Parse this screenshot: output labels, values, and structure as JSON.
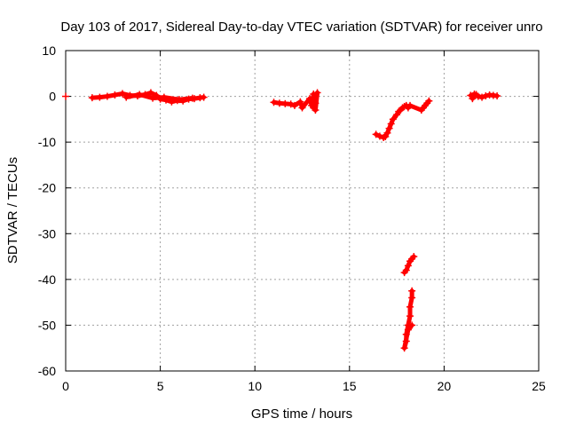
{
  "chart_data": {
    "type": "scatter",
    "title": "Day 103 of 2017, Sidereal Day-to-day VTEC variation (SDTVAR) for receiver unro",
    "xlabel": "GPS time / hours",
    "ylabel": "SDTVAR / TECUs",
    "xlim": [
      0,
      25
    ],
    "ylim": [
      -60,
      10
    ],
    "xticks": [
      0,
      5,
      10,
      15,
      20,
      25
    ],
    "yticks": [
      10,
      0,
      -10,
      -20,
      -30,
      -40,
      -50,
      -60
    ],
    "xtick_labels": [
      "0",
      "5",
      "10",
      "15",
      "20",
      "25"
    ],
    "ytick_labels": [
      "10",
      "0",
      "-10",
      "-20",
      "-30",
      "-40",
      "-50",
      "-60"
    ],
    "grid": true,
    "marker": "+",
    "series_color": "#ff0000",
    "series": [
      {
        "x": [
          0.0,
          1.4,
          1.8,
          2.2,
          2.6,
          3.0,
          3.4,
          3.8,
          4.2,
          4.5,
          4.8,
          5.0,
          5.3,
          5.6,
          5.9,
          6.2,
          6.5,
          6.8,
          7.1,
          7.3,
          3.2,
          3.9,
          4.6,
          5.2,
          6.0,
          6.7,
          11.0,
          11.3,
          11.6,
          11.9,
          12.1,
          12.4,
          12.5,
          12.9,
          13.0,
          13.1,
          13.2,
          13.3,
          13.2,
          13.1,
          16.4,
          16.6,
          16.8,
          16.9,
          17.0,
          17.1,
          17.2,
          17.3,
          17.5,
          17.6,
          17.7,
          17.8,
          17.9,
          18.0,
          18.1,
          18.2,
          18.8,
          18.9,
          19.0,
          19.1,
          19.2,
          17.9,
          18.0,
          18.1,
          18.2,
          18.3,
          18.4,
          18.3,
          18.3,
          18.2,
          18.2,
          18.1,
          18.0,
          18.0,
          17.9,
          18.1,
          18.3,
          21.4,
          21.6,
          21.8,
          22.0,
          22.2,
          22.4,
          22.6,
          22.8,
          21.5,
          21.7
        ],
        "y": [
          0.0,
          -0.3,
          -0.2,
          0.0,
          0.3,
          0.6,
          0.2,
          0.1,
          0.4,
          0.8,
          0.2,
          -0.6,
          -0.8,
          -1.2,
          -0.9,
          -1.0,
          -0.6,
          -0.5,
          -0.3,
          -0.2,
          -0.2,
          0.4,
          -0.4,
          -0.2,
          -0.7,
          -0.4,
          -1.3,
          -1.5,
          -1.6,
          -1.7,
          -2.0,
          -1.2,
          -2.5,
          -0.5,
          -2.0,
          0.5,
          -3.0,
          0.8,
          -1.5,
          -2.5,
          -8.3,
          -8.7,
          -9.0,
          -8.8,
          -8.0,
          -7.0,
          -6.0,
          -5.0,
          -4.0,
          -3.3,
          -3.0,
          -2.5,
          -2.2,
          -2.0,
          -2.5,
          -2.0,
          -3.0,
          -2.5,
          -2.0,
          -1.5,
          -1.0,
          -38.5,
          -38.0,
          -37.0,
          -36.0,
          -35.5,
          -35.0,
          -42.5,
          -44.0,
          -46.0,
          -48.0,
          -50.0,
          -52.0,
          -53.5,
          -55.0,
          -51.0,
          -50.0,
          0.2,
          0.5,
          0.0,
          -0.2,
          0.1,
          0.3,
          0.2,
          0.1,
          -0.5,
          0.4
        ]
      }
    ]
  }
}
